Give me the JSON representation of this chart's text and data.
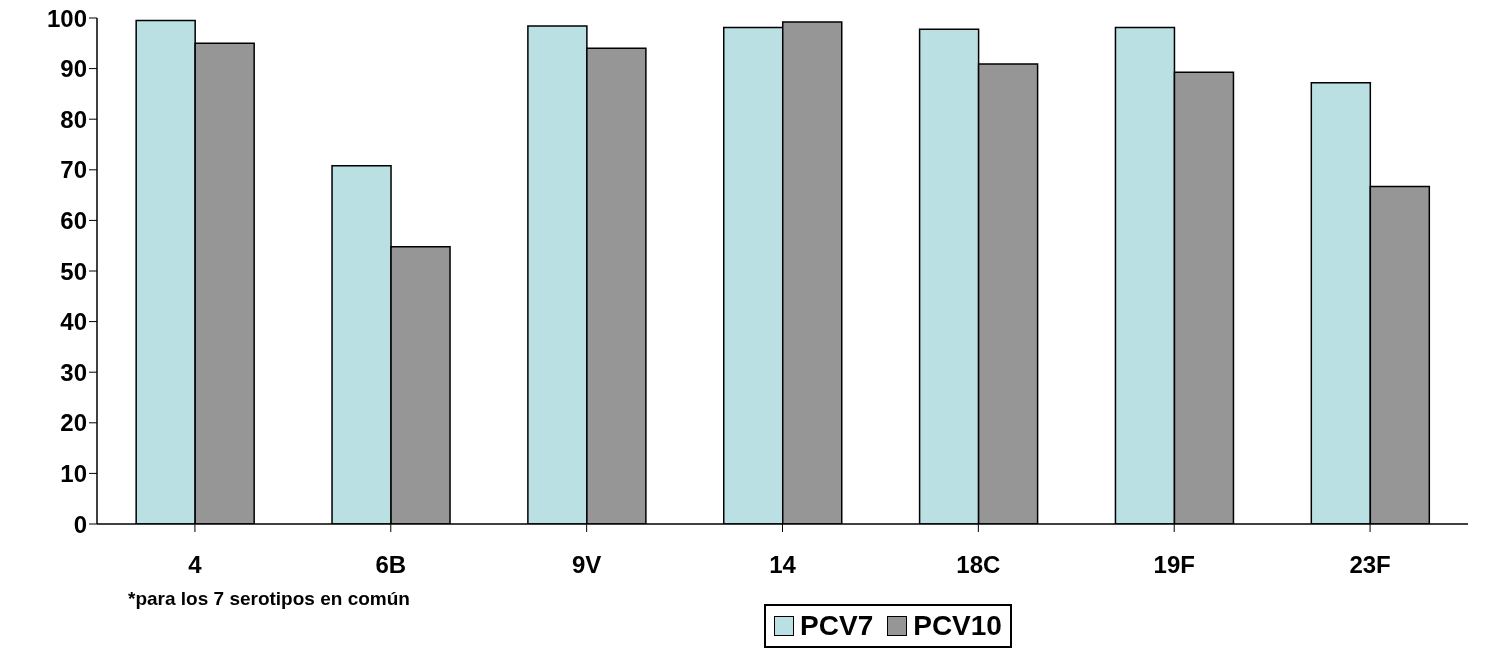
{
  "chart_data": {
    "type": "bar",
    "categories": [
      "4",
      "6B",
      "9V",
      "14",
      "18C",
      "19F",
      "23F"
    ],
    "series": [
      {
        "name": "PCV7",
        "color": "#bbe0e3",
        "values": [
          99.5,
          70.8,
          98.4,
          98.1,
          97.8,
          98.1,
          87.2
        ]
      },
      {
        "name": "PCV10",
        "color": "#969696",
        "values": [
          95.0,
          54.8,
          94.0,
          99.2,
          90.9,
          89.3,
          66.7
        ]
      }
    ],
    "ylim": [
      0,
      100
    ],
    "yticks": [
      0,
      10,
      20,
      30,
      40,
      50,
      60,
      70,
      80,
      90,
      100
    ],
    "grid": false,
    "legend": "bottom",
    "annotations": [
      "*para los 7 serotipos en común"
    ]
  }
}
